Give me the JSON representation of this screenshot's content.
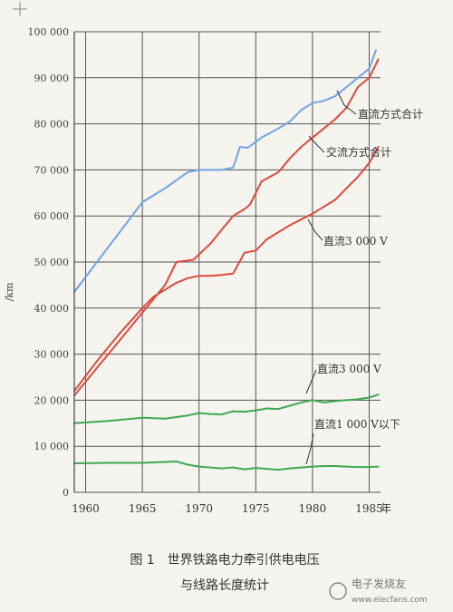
{
  "chart_data": {
    "type": "line",
    "title": "",
    "ylabel": "/km",
    "xunit": "年",
    "xlim": [
      1959,
      1986
    ],
    "ylim": [
      0,
      100000
    ],
    "grid": true,
    "yticks": [
      0,
      10000,
      20000,
      30000,
      40000,
      50000,
      60000,
      70000,
      80000,
      90000,
      100000
    ],
    "ytick_labels": [
      "0",
      "10 000",
      "20 000",
      "30 000",
      "40 000",
      "50 000",
      "60 000",
      "70 000",
      "80 000",
      "90 000",
      "100 000"
    ],
    "xticks": [
      1960,
      1965,
      1970,
      1975,
      1980,
      1985
    ],
    "xtick_labels": [
      "1960",
      "1965",
      "1970",
      "1975",
      "1980",
      "1985"
    ],
    "series": [
      {
        "name": "直流方式合计",
        "color": "#6fa4e8",
        "x": [
          1959,
          1961,
          1963,
          1965,
          1967,
          1969,
          1970,
          1972,
          1973,
          1973.6,
          1974.3,
          1975.5,
          1977,
          1978,
          1979,
          1980,
          1981,
          1982,
          1983,
          1984,
          1985,
          1985.6
        ],
        "y": [
          43500,
          50000,
          56500,
          63000,
          66000,
          69500,
          70000,
          70000,
          70500,
          75000,
          74800,
          77000,
          79000,
          80500,
          83000,
          84500,
          85000,
          86000,
          88000,
          90000,
          92000,
          96000
        ]
      },
      {
        "name": "交流方式合计",
        "color": "#e04a3c",
        "x": [
          1959,
          1961,
          1963,
          1965,
          1966,
          1968,
          1969,
          1970,
          1971,
          1972,
          1973,
          1974,
          1975,
          1976,
          1978,
          1980,
          1982,
          1983,
          1984,
          1985,
          1985.8
        ],
        "y": [
          22000,
          28500,
          34500,
          40000,
          42500,
          45500,
          46500,
          47000,
          47000,
          47200,
          47500,
          52000,
          52500,
          55000,
          58000,
          60500,
          63500,
          66000,
          68500,
          71500,
          75000
        ]
      },
      {
        "name": "直流3 000 V",
        "color": "#e04a3c",
        "x": [
          1959,
          1961,
          1963,
          1965,
          1967,
          1968,
          1969.5,
          1971,
          1972,
          1973,
          1974,
          1974.5,
          1975.5,
          1977,
          1978,
          1979,
          1980,
          1981,
          1982,
          1983,
          1984,
          1985,
          1985.8
        ],
        "y": [
          21000,
          27000,
          33000,
          39000,
          45000,
          50000,
          50500,
          54000,
          57000,
          60000,
          61500,
          62500,
          67500,
          69500,
          72500,
          75000,
          77000,
          79000,
          81000,
          83500,
          88000,
          90000,
          94000
        ]
      },
      {
        "name": "直流3 000 V",
        "color": "#3daa4f",
        "x": [
          1959,
          1962,
          1965,
          1967,
          1969,
          1970,
          1971,
          1972,
          1973,
          1974,
          1975,
          1976,
          1977,
          1978,
          1979,
          1980,
          1981,
          1982,
          1983,
          1984,
          1985,
          1985.8
        ],
        "y": [
          15000,
          15500,
          16200,
          16000,
          16700,
          17200,
          17000,
          16900,
          17600,
          17500,
          17800,
          18200,
          18100,
          18800,
          19500,
          20000,
          19500,
          19800,
          20000,
          20200,
          20600,
          21200
        ]
      },
      {
        "name": "直流1 000 V以下",
        "color": "#3daa4f",
        "x": [
          1959,
          1962,
          1965,
          1967,
          1968,
          1969,
          1970,
          1971,
          1972,
          1973,
          1974,
          1975,
          1976,
          1977,
          1978,
          1979,
          1980,
          1981,
          1982,
          1983,
          1984,
          1985,
          1985.8
        ],
        "y": [
          6300,
          6400,
          6400,
          6600,
          6700,
          6000,
          5600,
          5400,
          5200,
          5400,
          5000,
          5300,
          5100,
          4900,
          5200,
          5400,
          5600,
          5700,
          5700,
          5600,
          5500,
          5500,
          5600
        ]
      }
    ],
    "annotations": [
      {
        "text": "直流方式合计"
      },
      {
        "text": "交流方式合计"
      },
      {
        "text": "直流3 000 V"
      },
      {
        "text": "直流3 000 V"
      },
      {
        "text": "直流1 000 V以下"
      }
    ]
  },
  "caption": {
    "line1": "图 1　世界铁路电力牵引供电电压",
    "line2": "与线路长度统计"
  },
  "watermark": {
    "text": "电子发烧友",
    "url": "www.elecfans.com"
  }
}
